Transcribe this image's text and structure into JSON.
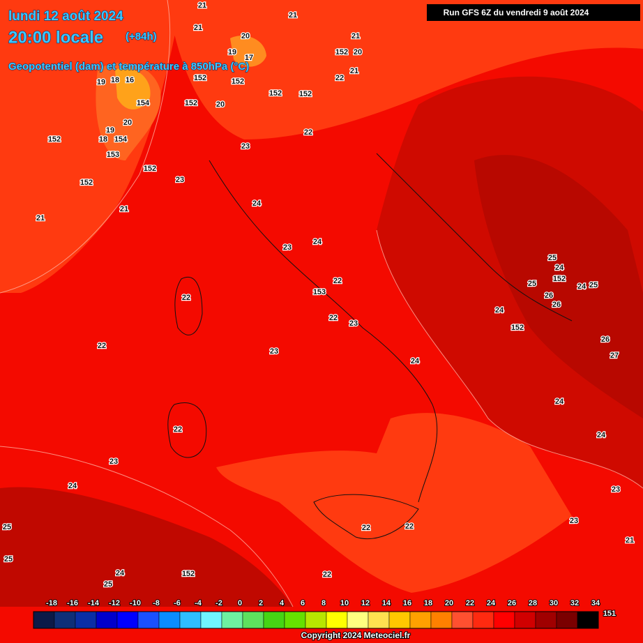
{
  "header": {
    "date": "lundi 12 août 2024",
    "time": "20:00 locale",
    "lead": "(+84h)",
    "parameter": "Geopotentiel (dam) et température à 850hPa (°C)",
    "run": "Run GFS 6Z du vendredi 9 août 2024"
  },
  "legend": {
    "ticks": [
      -18,
      -16,
      -14,
      -12,
      -10,
      -8,
      -6,
      -4,
      -2,
      0,
      2,
      4,
      6,
      8,
      10,
      12,
      14,
      16,
      18,
      20,
      22,
      24,
      26,
      28,
      30,
      32,
      34
    ],
    "colors": [
      "#0c1a48",
      "#0f2f78",
      "#0a2ea6",
      "#0000cc",
      "#0000ff",
      "#1a50ff",
      "#0a8cff",
      "#2ebeff",
      "#70f4ff",
      "#6ef0a0",
      "#5ee05e",
      "#46d414",
      "#66e000",
      "#b8e600",
      "#ffff00",
      "#ffff80",
      "#ffe050",
      "#ffc800",
      "#ffa000",
      "#ff8000",
      "#ff5030",
      "#ff2a10",
      "#ff0000",
      "#d00000",
      "#a00000",
      "#7a0000",
      "#000000"
    ],
    "end_label": "151"
  },
  "map_labels": [
    "21",
    "21",
    "21",
    "20",
    "21",
    "152",
    "20",
    "19",
    "17",
    "21",
    "19",
    "18",
    "16",
    "152",
    "152",
    "22",
    "152",
    "152",
    "154",
    "152",
    "20",
    "20",
    "19",
    "18",
    "154",
    "152",
    "22",
    "23",
    "153",
    "152",
    "152",
    "23",
    "21",
    "21",
    "24",
    "24",
    "23",
    "25",
    "24",
    "152",
    "22",
    "25",
    "24",
    "25",
    "153",
    "26",
    "26",
    "22",
    "24",
    "22",
    "23",
    "152",
    "26",
    "22",
    "23",
    "27",
    "24",
    "24",
    "22",
    "24",
    "23",
    "24",
    "23",
    "22",
    "22",
    "23",
    "25",
    "21",
    "25",
    "24",
    "152",
    "22",
    "25"
  ],
  "copyright": "Copyright 2024 Meteociel.fr"
}
